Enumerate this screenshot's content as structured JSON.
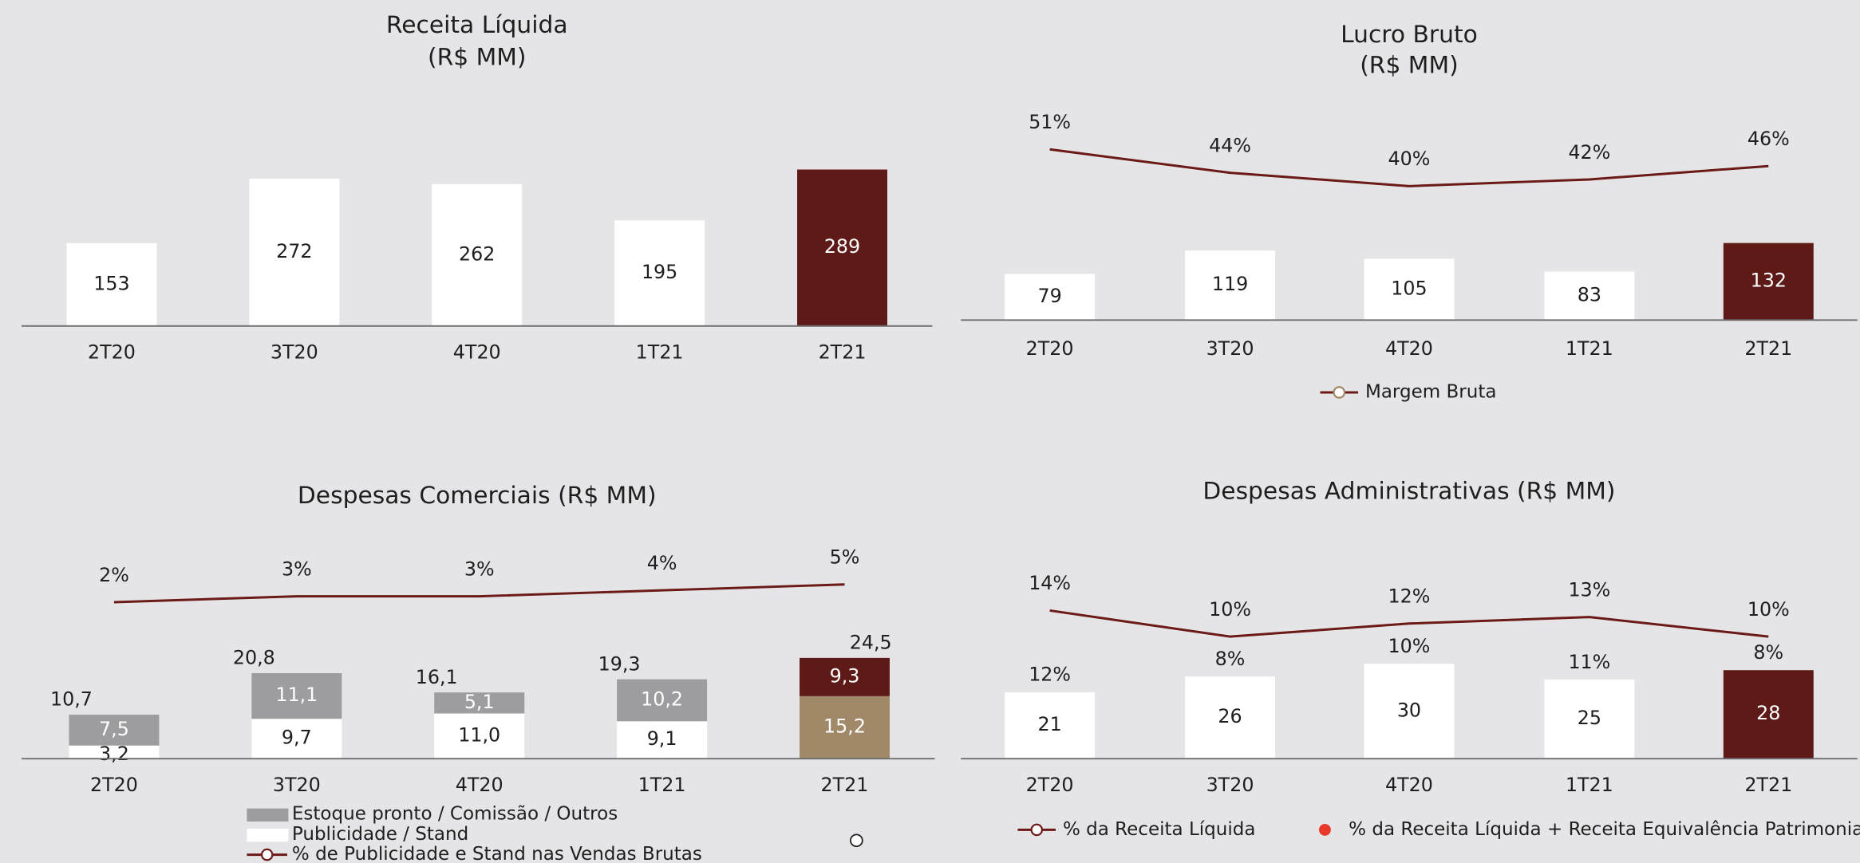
{
  "chart_data": [
    {
      "type": "bar",
      "title": "Receita Líquida",
      "subtitle": "(R$ MM)",
      "categories": [
        "2T20",
        "3T20",
        "4T20",
        "1T21",
        "2T21"
      ],
      "values": [
        153,
        272,
        262,
        195,
        289
      ],
      "colors": [
        "#ffffff",
        "#ffffff",
        "#ffffff",
        "#ffffff",
        "#5e1a17"
      ]
    },
    {
      "type": "bar_line",
      "title": "Lucro Bruto",
      "subtitle": "(R$ MM)",
      "categories": [
        "2T20",
        "3T20",
        "4T20",
        "1T21",
        "2T21"
      ],
      "values": [
        79,
        119,
        105,
        83,
        132
      ],
      "colors": [
        "#ffffff",
        "#ffffff",
        "#ffffff",
        "#ffffff",
        "#5e1a17"
      ],
      "line": {
        "name": "Margem Bruta",
        "color": "#6b1a17",
        "values": [
          51,
          44,
          40,
          42,
          46
        ],
        "value_labels": [
          "51%",
          "44%",
          "40%",
          "42%",
          "46%"
        ]
      }
    },
    {
      "type": "stacked_bar_line",
      "title": "Despesas Comerciais (R$ MM)",
      "categories": [
        "2T20",
        "3T20",
        "4T20",
        "1T21",
        "2T21"
      ],
      "series": [
        {
          "name": "Publicidade / Stand",
          "colors": [
            "#ffffff",
            "#ffffff",
            "#ffffff",
            "#ffffff",
            "#a08868"
          ],
          "values": [
            3.2,
            9.7,
            11.0,
            9.1,
            15.2
          ],
          "value_labels": [
            "3,2",
            "9,7",
            "11,0",
            "9,1",
            "15,2"
          ]
        },
        {
          "name": "Estoque pronto / Comissão / Outros",
          "colors": [
            "#9d9d9f",
            "#9d9d9f",
            "#9d9d9f",
            "#9d9d9f",
            "#5e1a17"
          ],
          "values": [
            7.5,
            11.1,
            5.1,
            10.2,
            9.3
          ],
          "value_labels": [
            "7,5",
            "11,1",
            "5,1",
            "10,2",
            "9,3"
          ]
        }
      ],
      "totals": [
        10.7,
        20.8,
        16.1,
        19.3,
        24.5
      ],
      "total_labels": [
        "10,7",
        "20,8",
        "16,1",
        "19,3",
        "24,5"
      ],
      "line": {
        "name": "% de Publicidade e Stand nas Vendas Brutas",
        "color": "#6b1a17",
        "values": [
          2,
          3,
          3,
          4,
          5
        ],
        "value_labels": [
          "2%",
          "3%",
          "3%",
          "4%",
          "5%"
        ]
      }
    },
    {
      "type": "bar_line",
      "title": "Despesas Administrativas (R$ MM)",
      "categories": [
        "2T20",
        "3T20",
        "4T20",
        "1T21",
        "2T21"
      ],
      "values": [
        21,
        26,
        30,
        25,
        28
      ],
      "colors": [
        "#ffffff",
        "#ffffff",
        "#ffffff",
        "#ffffff",
        "#5e1a17"
      ],
      "line": {
        "name": "% da Receita Líquida",
        "color": "#6b1a17",
        "values": [
          14,
          10,
          12,
          13,
          10
        ],
        "value_labels": [
          "14%",
          "10%",
          "12%",
          "13%",
          "10%"
        ]
      },
      "labels_series": {
        "name": "% da Receita Líquida + Receita Equivalência Patrimonial",
        "color": "#e8392b",
        "values": [
          12,
          8,
          10,
          11,
          8
        ],
        "value_labels": [
          "12%",
          "8%",
          "10%",
          "11%",
          "8%"
        ]
      }
    }
  ]
}
